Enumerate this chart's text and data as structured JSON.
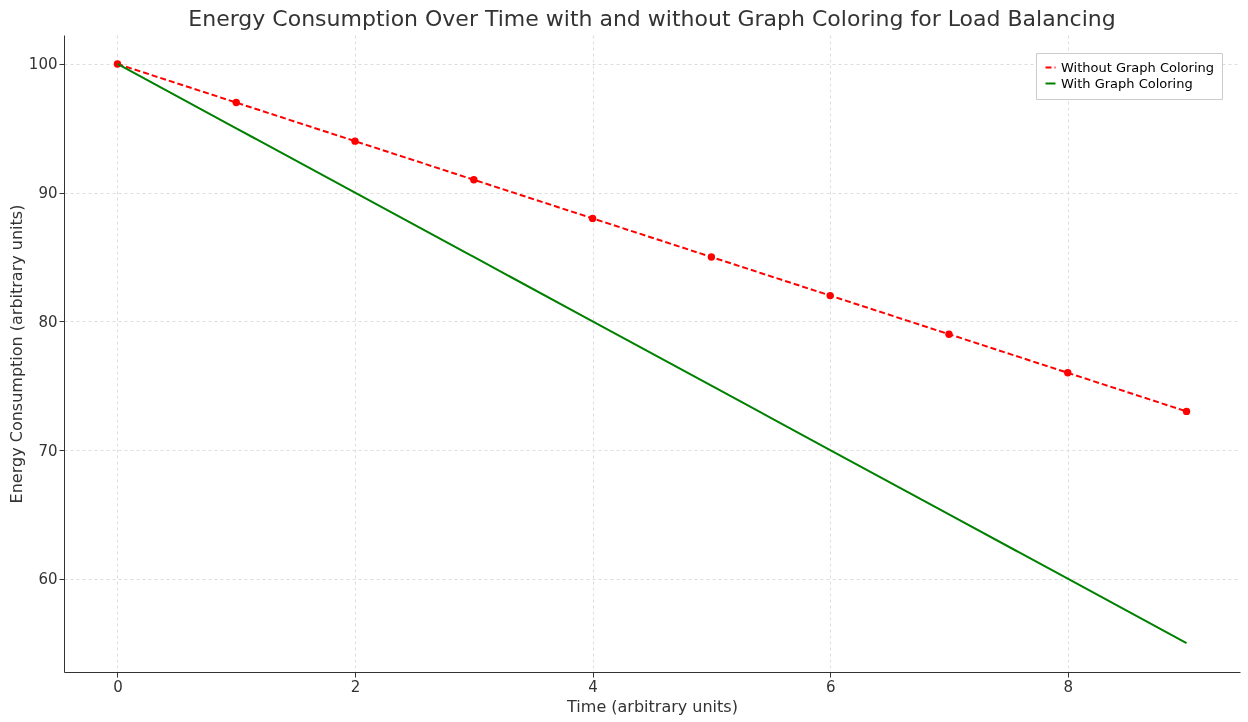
{
  "chart_data": {
    "type": "line",
    "title": "Energy Consumption Over Time with and without Graph Coloring for Load Balancing",
    "xlabel": "Time (arbitrary units)",
    "ylabel": "Energy Consumption (arbitrary units)",
    "x": [
      0,
      1,
      2,
      3,
      4,
      5,
      6,
      7,
      8,
      9
    ],
    "series": [
      {
        "name": "Without Graph Coloring",
        "color": "#ff0000",
        "line_style": "dashed",
        "marker": "circle",
        "values": [
          100,
          97,
          94,
          91,
          88,
          85,
          82,
          79,
          76,
          73
        ]
      },
      {
        "name": "With Graph Coloring",
        "color": "#008000",
        "line_style": "solid",
        "marker": "none",
        "values": [
          100,
          95,
          90,
          85,
          80,
          75,
          70,
          65,
          60,
          55
        ]
      }
    ],
    "xlim": [
      -0.45,
      9.45
    ],
    "ylim": [
      52.75,
      102.25
    ],
    "xticks": [
      0,
      2,
      4,
      6,
      8
    ],
    "yticks": [
      60,
      70,
      80,
      90,
      100
    ],
    "grid": true,
    "legend": "top right"
  }
}
